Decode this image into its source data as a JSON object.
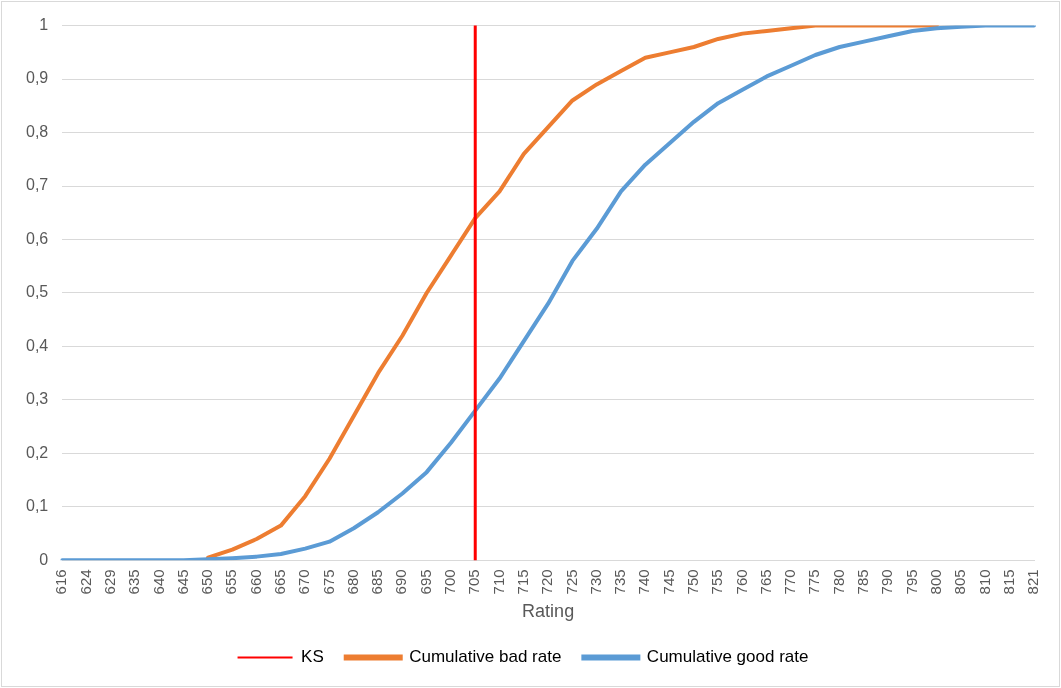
{
  "chart_data": {
    "type": "line",
    "xlabel": "Rating",
    "categories": [
      "616",
      "624",
      "629",
      "635",
      "640",
      "645",
      "650",
      "655",
      "660",
      "665",
      "670",
      "675",
      "680",
      "685",
      "690",
      "695",
      "700",
      "705",
      "710",
      "715",
      "720",
      "725",
      "730",
      "735",
      "740",
      "745",
      "750",
      "755",
      "760",
      "765",
      "770",
      "775",
      "780",
      "785",
      "790",
      "795",
      "800",
      "805",
      "810",
      "815",
      "821"
    ],
    "series": [
      {
        "name": "Cumulative bad rate",
        "color": "#ed7d31",
        "values": [
          null,
          null,
          null,
          null,
          null,
          null,
          0.005,
          0.02,
          0.04,
          0.065,
          0.12,
          0.19,
          0.27,
          0.35,
          0.42,
          0.5,
          0.57,
          0.64,
          0.69,
          0.76,
          0.81,
          0.86,
          0.89,
          0.915,
          0.94,
          0.95,
          0.96,
          0.975,
          0.985,
          0.99,
          0.995,
          1,
          1,
          1,
          1,
          1,
          1,
          null,
          null,
          null,
          null
        ]
      },
      {
        "name": "Cumulative good rate",
        "color": "#5b9bd5",
        "values": [
          0,
          0,
          0,
          0,
          0,
          0,
          0.002,
          0.004,
          0.007,
          0.012,
          0.022,
          0.035,
          0.06,
          0.09,
          0.125,
          0.165,
          0.22,
          0.28,
          0.34,
          0.41,
          0.48,
          0.56,
          0.62,
          0.69,
          0.74,
          0.78,
          0.82,
          0.855,
          0.88,
          0.905,
          0.925,
          0.945,
          0.96,
          0.97,
          0.98,
          0.99,
          0.995,
          0.998,
          1,
          1,
          1
        ]
      }
    ],
    "ylim": [
      0,
      1
    ],
    "yticks": [
      0,
      {
        "value": 0.1,
        "label": "0,1"
      },
      {
        "value": 0.2,
        "label": "0,2"
      },
      {
        "value": 0.3,
        "label": "0,3"
      },
      {
        "value": 0.4,
        "label": "0,4"
      },
      {
        "value": 0.5,
        "label": "0,5"
      },
      {
        "value": 0.6,
        "label": "0,6"
      },
      {
        "value": 0.7,
        "label": "0,7"
      },
      {
        "value": 0.8,
        "label": "0,8"
      },
      {
        "value": 0.9,
        "label": "0,9"
      },
      1
    ],
    "ref_lines": [
      {
        "axis": "x",
        "value": "705",
        "label": "KS",
        "color": "#ff0000"
      }
    ],
    "grid": "y",
    "legend": "bottom",
    "marker": "none",
    "line_style": "solid"
  }
}
